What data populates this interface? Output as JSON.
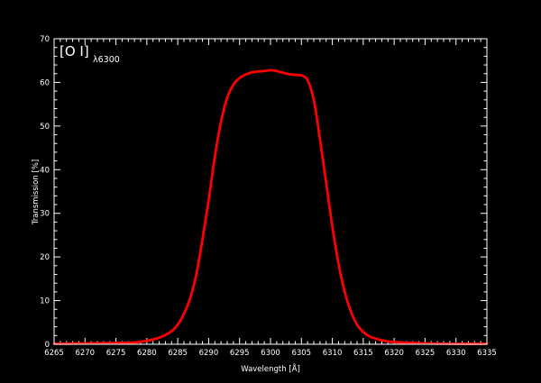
{
  "chart_data": {
    "type": "line",
    "title": "",
    "xlabel": "Wavelength [Å]",
    "ylabel": "Transmission [%]",
    "xlim": [
      6265,
      6335
    ],
    "ylim": [
      0,
      70
    ],
    "x_ticks": [
      6265,
      6270,
      6275,
      6280,
      6285,
      6290,
      6295,
      6300,
      6305,
      6310,
      6315,
      6320,
      6325,
      6330,
      6335
    ],
    "y_ticks": [
      0,
      10,
      20,
      30,
      40,
      50,
      60,
      70
    ],
    "grid": false,
    "legend": "none",
    "annotation": {
      "text": "[O I]",
      "subscript": "λ6300"
    },
    "colors": {
      "background": "#000000",
      "axes": "#ffffff",
      "line": "#ff0000"
    },
    "series": [
      {
        "x": [
          6265,
          6270,
          6275,
          6278,
          6280,
          6282,
          6284,
          6285,
          6286,
          6287,
          6288,
          6289,
          6290,
          6291,
          6292,
          6293,
          6294,
          6295,
          6296,
          6297,
          6298,
          6299,
          6300,
          6301,
          6302,
          6303,
          6304,
          6305,
          6306,
          6307,
          6308,
          6309,
          6310,
          6311,
          6312,
          6313,
          6314,
          6315,
          6316,
          6318,
          6320,
          6325,
          6330,
          6335
        ],
        "y": [
          0.1,
          0.2,
          0.3,
          0.4,
          0.8,
          1.5,
          3.0,
          4.5,
          7.0,
          10.5,
          16.0,
          24.0,
          33.0,
          43.0,
          51.0,
          56.5,
          59.5,
          61.0,
          61.8,
          62.3,
          62.5,
          62.6,
          62.8,
          62.6,
          62.2,
          61.9,
          61.7,
          61.6,
          60.5,
          56.0,
          47.0,
          37.0,
          27.0,
          18.5,
          12.0,
          7.5,
          4.5,
          2.8,
          1.8,
          0.9,
          0.5,
          0.2,
          0.1,
          0.1
        ]
      }
    ]
  }
}
